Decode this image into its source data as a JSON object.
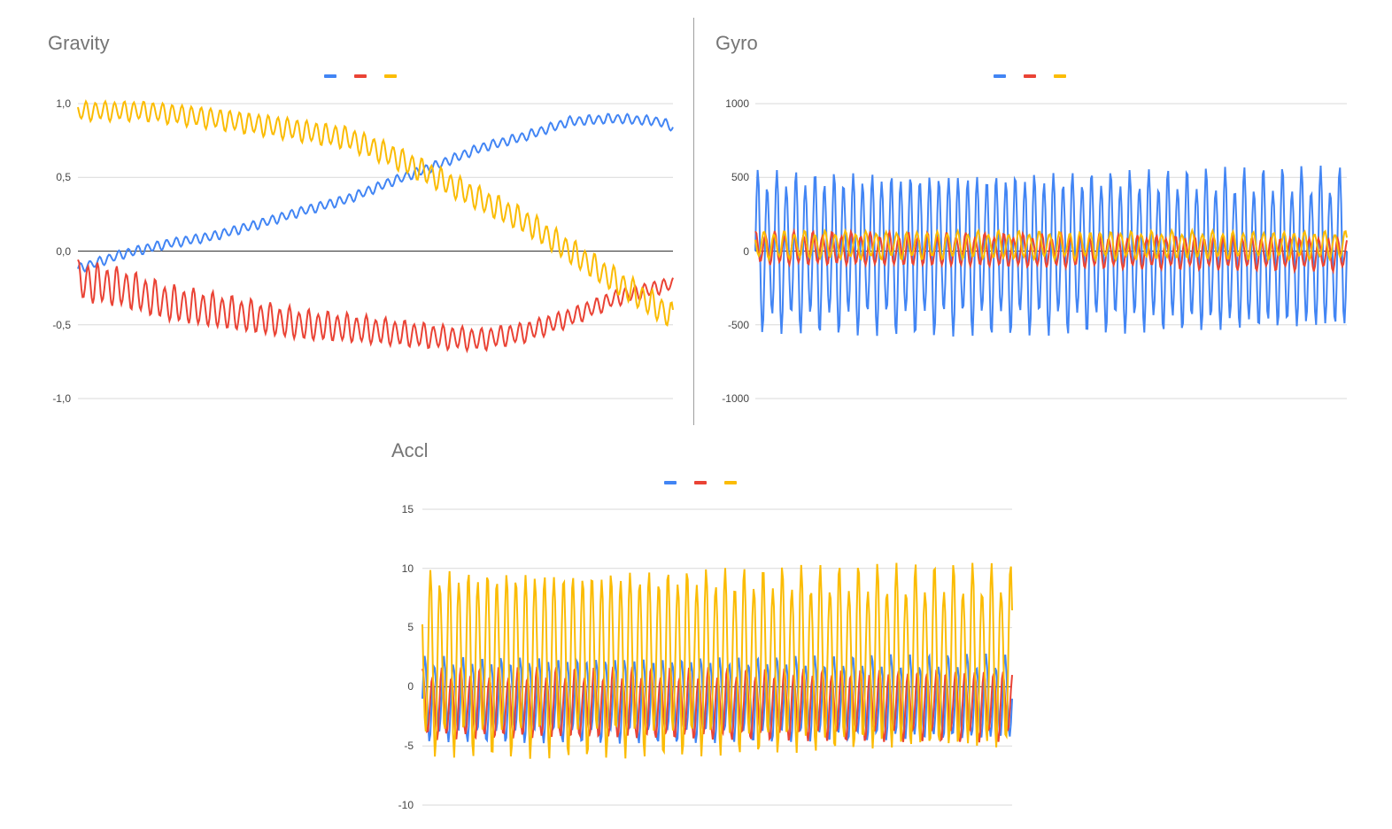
{
  "colors": {
    "blue": "#4285f4",
    "red": "#ea4335",
    "yellow": "#fbbc04"
  },
  "chart_data": [
    {
      "type": "line",
      "title": "Gravity",
      "xlabel": "",
      "ylabel": "",
      "ylim": [
        -1.0,
        1.0
      ],
      "yticks": [
        "1,0",
        "0,5",
        "0,0",
        "-0,5",
        "-1,0"
      ],
      "ytick_values": [
        1.0,
        0.5,
        0.0,
        -0.5,
        -1.0
      ],
      "legend": [
        "",
        "",
        ""
      ],
      "series": [
        {
          "name": "blue",
          "color": "#4285f4",
          "anchors": [
            [
              0,
              -0.12
            ],
            [
              10,
              -0.02
            ],
            [
              20,
              0.05
            ],
            [
              30,
              0.1
            ],
            [
              40,
              0.18
            ],
            [
              50,
              0.27
            ],
            [
              60,
              0.35
            ],
            [
              70,
              0.47
            ],
            [
              80,
              0.58
            ],
            [
              90,
              0.7
            ],
            [
              100,
              0.78
            ],
            [
              110,
              0.88
            ],
            [
              120,
              0.9
            ],
            [
              130,
              0.88
            ],
            [
              133,
              0.84
            ]
          ],
          "osc_amp": 0.035,
          "cycles": 62
        },
        {
          "name": "red",
          "color": "#ea4335",
          "anchors": [
            [
              0,
              -0.2
            ],
            [
              10,
              -0.25
            ],
            [
              20,
              -0.35
            ],
            [
              30,
              -0.4
            ],
            [
              40,
              -0.45
            ],
            [
              50,
              -0.5
            ],
            [
              60,
              -0.52
            ],
            [
              70,
              -0.55
            ],
            [
              80,
              -0.58
            ],
            [
              90,
              -0.6
            ],
            [
              100,
              -0.55
            ],
            [
              110,
              -0.45
            ],
            [
              120,
              -0.32
            ],
            [
              133,
              -0.22
            ]
          ],
          "osc_amp": 0.15,
          "osc_amp_end": 0.05,
          "cycles": 62
        },
        {
          "name": "yellow",
          "color": "#fbbc04",
          "anchors": [
            [
              0,
              0.95
            ],
            [
              15,
              0.95
            ],
            [
              30,
              0.9
            ],
            [
              45,
              0.84
            ],
            [
              60,
              0.77
            ],
            [
              70,
              0.65
            ],
            [
              80,
              0.5
            ],
            [
              90,
              0.35
            ],
            [
              100,
              0.2
            ],
            [
              110,
              0.0
            ],
            [
              120,
              -0.2
            ],
            [
              133,
              -0.45
            ]
          ],
          "osc_amp": 0.07,
          "osc_amp_end": 0.1,
          "cycles": 62
        }
      ]
    },
    {
      "type": "line",
      "title": "Gyro",
      "xlabel": "",
      "ylabel": "",
      "ylim": [
        -1000,
        1000
      ],
      "yticks": [
        "1000",
        "500",
        "0",
        "-500",
        "-1000"
      ],
      "ytick_values": [
        1000,
        500,
        0,
        -500,
        -1000
      ],
      "legend": [
        "",
        "",
        ""
      ],
      "series": [
        {
          "name": "blue",
          "color": "#4285f4",
          "anchors": [
            [
              0,
              0
            ],
            [
              133,
              0
            ]
          ],
          "osc_amp": 580,
          "cycles": 62
        },
        {
          "name": "red",
          "color": "#ea4335",
          "anchors": [
            [
              0,
              20
            ],
            [
              133,
              -20
            ]
          ],
          "osc_amp": 120,
          "cycles": 62
        },
        {
          "name": "yellow",
          "color": "#fbbc04",
          "anchors": [
            [
              0,
              40
            ],
            [
              133,
              40
            ]
          ],
          "osc_amp": 100,
          "cycles": 58
        }
      ]
    },
    {
      "type": "line",
      "title": "Accl",
      "xlabel": "",
      "ylabel": "",
      "ylim": [
        -10,
        15
      ],
      "yticks": [
        "15",
        "10",
        "5",
        "0",
        "-5",
        "-10"
      ],
      "ytick_values": [
        15,
        10,
        5,
        0,
        -5,
        -10
      ],
      "legend": [
        "",
        "",
        ""
      ],
      "series": [
        {
          "name": "blue",
          "color": "#4285f4",
          "anchors": [
            [
              0,
              -1
            ],
            [
              133,
              -1
            ]
          ],
          "osc_amp": 3.8,
          "cycles": 62
        },
        {
          "name": "red",
          "color": "#ea4335",
          "anchors": [
            [
              0,
              -1.5
            ],
            [
              133,
              -1.5
            ]
          ],
          "osc_amp": 3.2,
          "cycles": 62
        },
        {
          "name": "yellow",
          "color": "#fbbc04",
          "anchors": [
            [
              0,
              2.2
            ],
            [
              133,
              2.2
            ]
          ],
          "osc_amp": 8.3,
          "cycles": 62
        }
      ]
    }
  ]
}
